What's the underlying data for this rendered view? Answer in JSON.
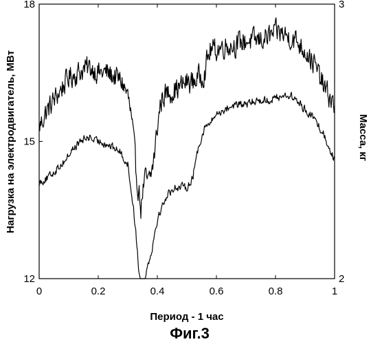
{
  "chart_data": {
    "type": "line",
    "figure_label": "Фиг.3",
    "xlabel": "Период - 1 час",
    "ylabel_left": "Нагрузка на электродвигатель, МВт",
    "ylabel_right": "Масса, кг",
    "xlim": [
      0,
      1
    ],
    "ylim_left": [
      12,
      18
    ],
    "ylim_right": [
      2,
      3
    ],
    "x_ticks": [
      0,
      0.2,
      0.4,
      0.6,
      0.8,
      1
    ],
    "x_tick_labels": [
      "0",
      "0.2",
      "0.4",
      "0.6",
      "0.8",
      "1"
    ],
    "y_left_ticks": [
      12,
      15,
      18
    ],
    "y_left_tick_labels": [
      "12",
      "15",
      "18"
    ],
    "y_right_ticks": [
      2,
      3
    ],
    "y_right_tick_labels": [
      "2",
      "3"
    ],
    "grid": false,
    "legend": "none",
    "series": [
      {
        "axis": "left",
        "color": "#000000",
        "noise": 0.35,
        "x": [
          0,
          0.02,
          0.05,
          0.08,
          0.1,
          0.13,
          0.16,
          0.18,
          0.2,
          0.23,
          0.26,
          0.28,
          0.3,
          0.31,
          0.32,
          0.33,
          0.34,
          0.345,
          0.35,
          0.36,
          0.37,
          0.38,
          0.39,
          0.4,
          0.41,
          0.42,
          0.45,
          0.48,
          0.5,
          0.52,
          0.54,
          0.56,
          0.57,
          0.58,
          0.6,
          0.63,
          0.66,
          0.7,
          0.74,
          0.78,
          0.81,
          0.84,
          0.87,
          0.9,
          0.93,
          0.95,
          0.97,
          0.99,
          1
        ],
        "y": [
          15.3,
          15.6,
          15.9,
          16.2,
          16.4,
          16.5,
          16.6,
          16.6,
          16.5,
          16.5,
          16.4,
          16.3,
          16.0,
          15.6,
          15.0,
          14.2,
          13.8,
          13.5,
          13.9,
          14.2,
          14.1,
          14.3,
          14.7,
          15.3,
          15.8,
          16.0,
          16.1,
          16.2,
          16.3,
          16.3,
          16.4,
          16.5,
          16.8,
          17.0,
          17.0,
          17.1,
          17.1,
          17.2,
          17.2,
          17.3,
          17.4,
          17.3,
          17.2,
          17.0,
          16.7,
          16.4,
          16.1,
          15.9,
          15.7
        ]
      },
      {
        "axis": "left",
        "color": "#000000",
        "noise": 0.12,
        "x": [
          0,
          0.03,
          0.06,
          0.09,
          0.11,
          0.14,
          0.17,
          0.19,
          0.21,
          0.24,
          0.27,
          0.29,
          0.3,
          0.31,
          0.32,
          0.33,
          0.335,
          0.34,
          0.345,
          0.35,
          0.36,
          0.38,
          0.4,
          0.43,
          0.46,
          0.5,
          0.52,
          0.53,
          0.54,
          0.55,
          0.56,
          0.58,
          0.6,
          0.63,
          0.66,
          0.7,
          0.74,
          0.78,
          0.82,
          0.85,
          0.87,
          0.9,
          0.93,
          0.96,
          0.98,
          1
        ],
        "y": [
          14.1,
          14.2,
          14.4,
          14.6,
          14.8,
          15.0,
          15.1,
          15.0,
          15.0,
          14.9,
          14.8,
          14.6,
          14.5,
          14.0,
          13.5,
          12.8,
          12.4,
          12.0,
          11.9,
          11.9,
          12.1,
          12.6,
          13.3,
          13.8,
          14.0,
          14.0,
          14.2,
          14.6,
          14.9,
          15.1,
          15.3,
          15.4,
          15.6,
          15.7,
          15.8,
          15.8,
          15.9,
          15.9,
          16.0,
          16.0,
          15.9,
          15.7,
          15.5,
          15.2,
          14.9,
          14.6
        ]
      }
    ]
  }
}
